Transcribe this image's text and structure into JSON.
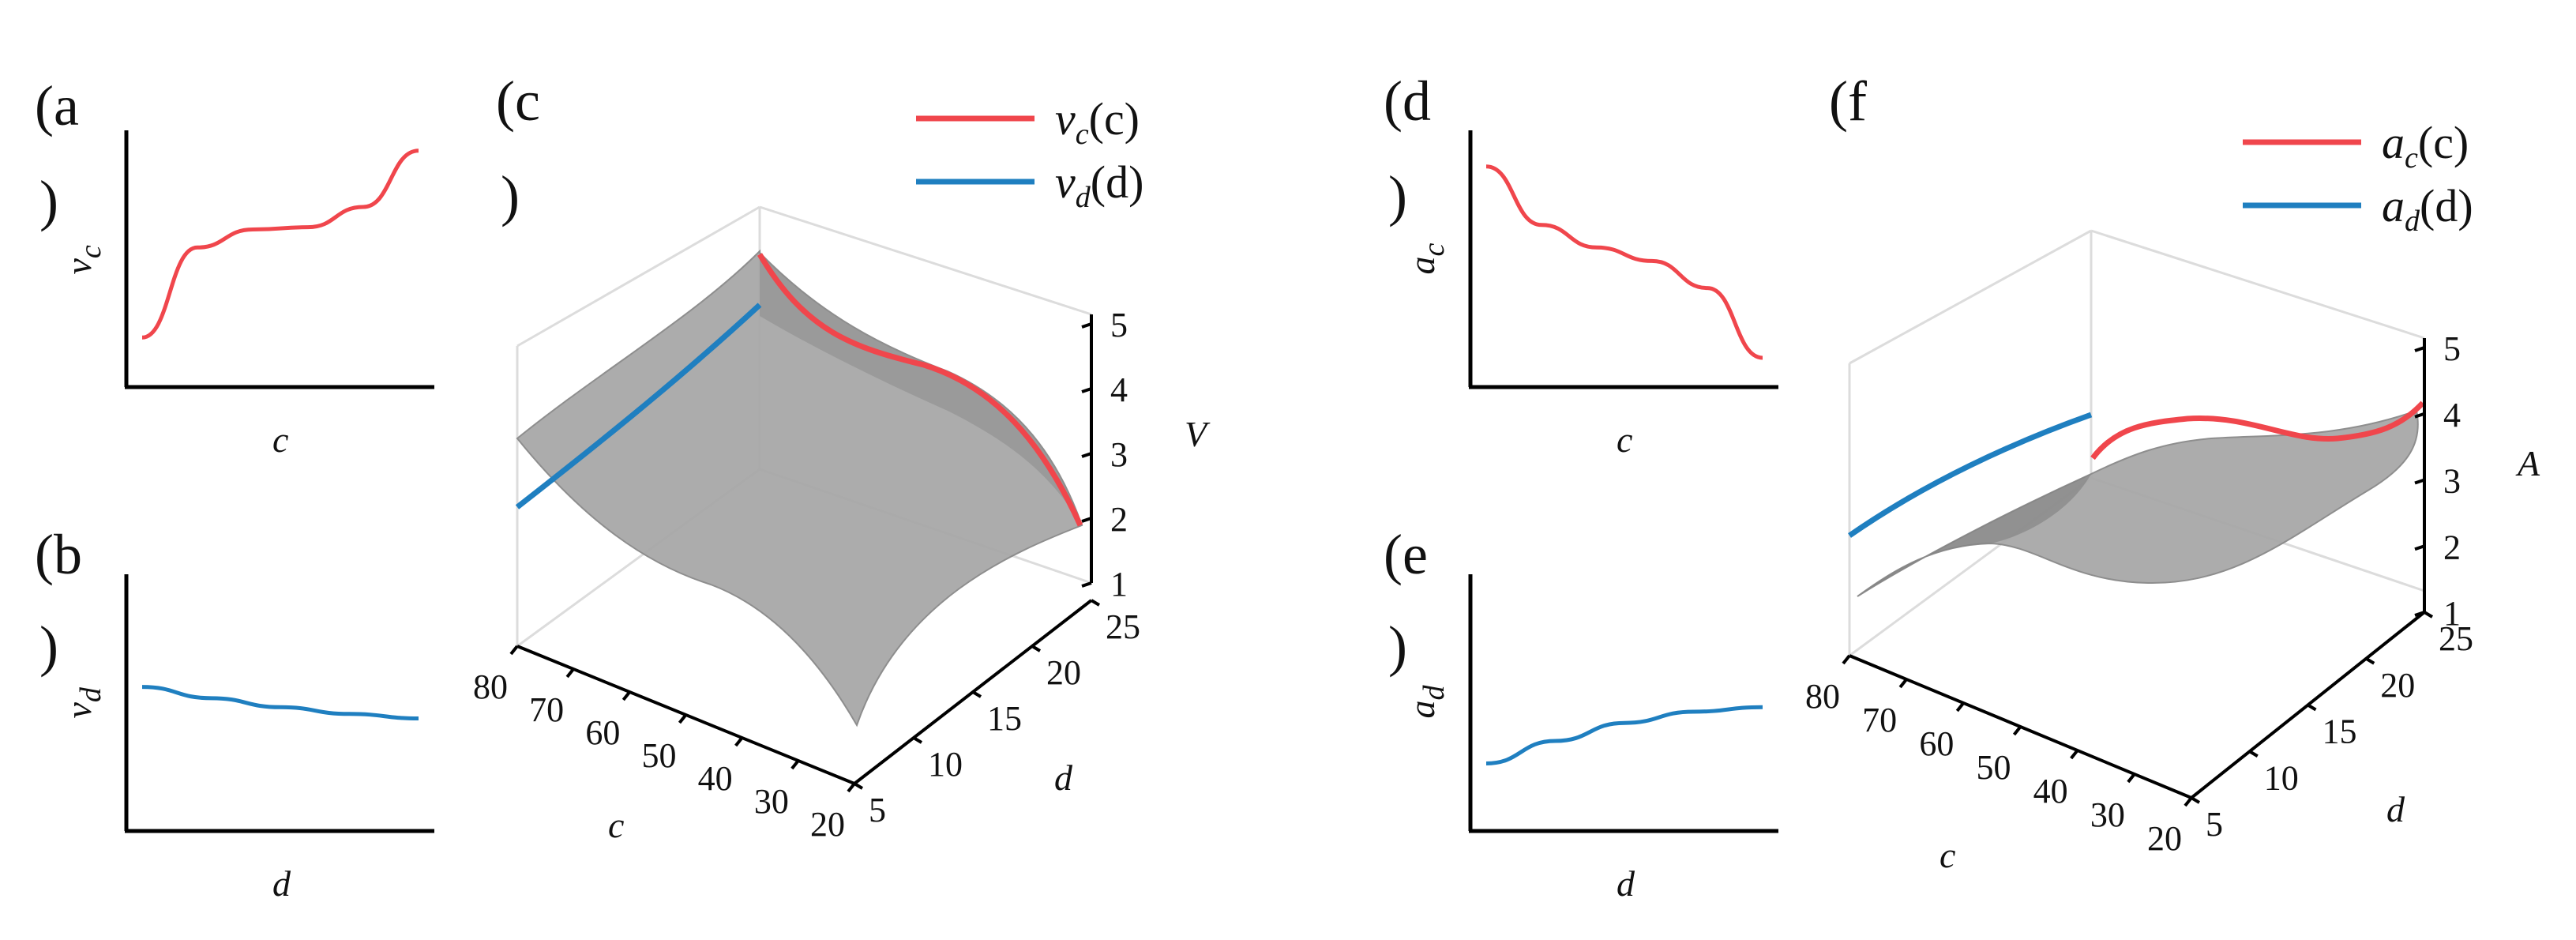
{
  "panels": {
    "a": {
      "label_top": "(a",
      "label_bot": ")"
    },
    "b": {
      "label_top": "(b",
      "label_bot": ")"
    },
    "c": {
      "label_top": "(c",
      "label_bot": ")"
    },
    "d": {
      "label_top": "(d",
      "label_bot": ")"
    },
    "e": {
      "label_top": "(e",
      "label_bot": ")"
    },
    "f": {
      "label_top": "(f",
      "label_bot": ""
    }
  },
  "colors": {
    "red": "#f0464c",
    "blue": "#1f7fc0",
    "surface": "#a8a8a8",
    "surface_edge": "#7d7d7d",
    "box": "#dcdcdc",
    "axis": "#000000"
  },
  "chart_data": [
    {
      "id": "a",
      "type": "line",
      "xlabel": "c",
      "ylabel": "v",
      "ylabel_sub": "c",
      "series": [
        {
          "color": "red",
          "x": [
            0,
            0.2,
            0.4,
            0.6,
            0.8,
            1.0
          ],
          "y": [
            0.22,
            0.62,
            0.7,
            0.71,
            0.8,
            1.05
          ]
        }
      ]
    },
    {
      "id": "b",
      "type": "line",
      "xlabel": "d",
      "ylabel": "v",
      "ylabel_sub": "d",
      "series": [
        {
          "color": "blue",
          "x": [
            0,
            0.25,
            0.5,
            0.75,
            1.0
          ],
          "y": [
            0.64,
            0.59,
            0.55,
            0.52,
            0.5
          ]
        }
      ]
    },
    {
      "id": "c",
      "type": "area",
      "title": "",
      "zlabel": "V",
      "xlabel": "c",
      "ylabel": "d",
      "c_ticks": [
        "80",
        "70",
        "60",
        "50",
        "40",
        "30",
        "20"
      ],
      "d_ticks": [
        "5",
        "10",
        "15",
        "20",
        "25"
      ],
      "z_ticks": [
        "1",
        "2",
        "3",
        "4",
        "5"
      ],
      "legend": [
        {
          "label": "v",
          "sub": "c",
          "arg": "(c)",
          "color": "red"
        },
        {
          "label": "v",
          "sub": "d",
          "arg": "(d)",
          "color": "blue"
        }
      ]
    },
    {
      "id": "d",
      "type": "line",
      "xlabel": "c",
      "ylabel": "a",
      "ylabel_sub": "c",
      "series": [
        {
          "color": "red",
          "x": [
            0,
            0.2,
            0.4,
            0.6,
            0.8,
            1.0
          ],
          "y": [
            0.98,
            0.72,
            0.62,
            0.56,
            0.44,
            0.13
          ]
        }
      ]
    },
    {
      "id": "e",
      "type": "line",
      "xlabel": "d",
      "ylabel": "a",
      "ylabel_sub": "d",
      "series": [
        {
          "color": "blue",
          "x": [
            0,
            0.25,
            0.5,
            0.75,
            1.0
          ],
          "y": [
            0.3,
            0.4,
            0.48,
            0.53,
            0.55
          ]
        }
      ]
    },
    {
      "id": "f",
      "type": "area",
      "title": "",
      "zlabel": "A",
      "xlabel": "c",
      "ylabel": "d",
      "c_ticks": [
        "80",
        "70",
        "60",
        "50",
        "40",
        "30",
        "20"
      ],
      "d_ticks": [
        "5",
        "10",
        "15",
        "20",
        "25"
      ],
      "z_ticks": [
        "1",
        "2",
        "3",
        "4",
        "5"
      ],
      "legend": [
        {
          "label": "a",
          "sub": "c",
          "arg": "(c)",
          "color": "red"
        },
        {
          "label": "a",
          "sub": "d",
          "arg": "(d)",
          "color": "blue"
        }
      ]
    }
  ]
}
